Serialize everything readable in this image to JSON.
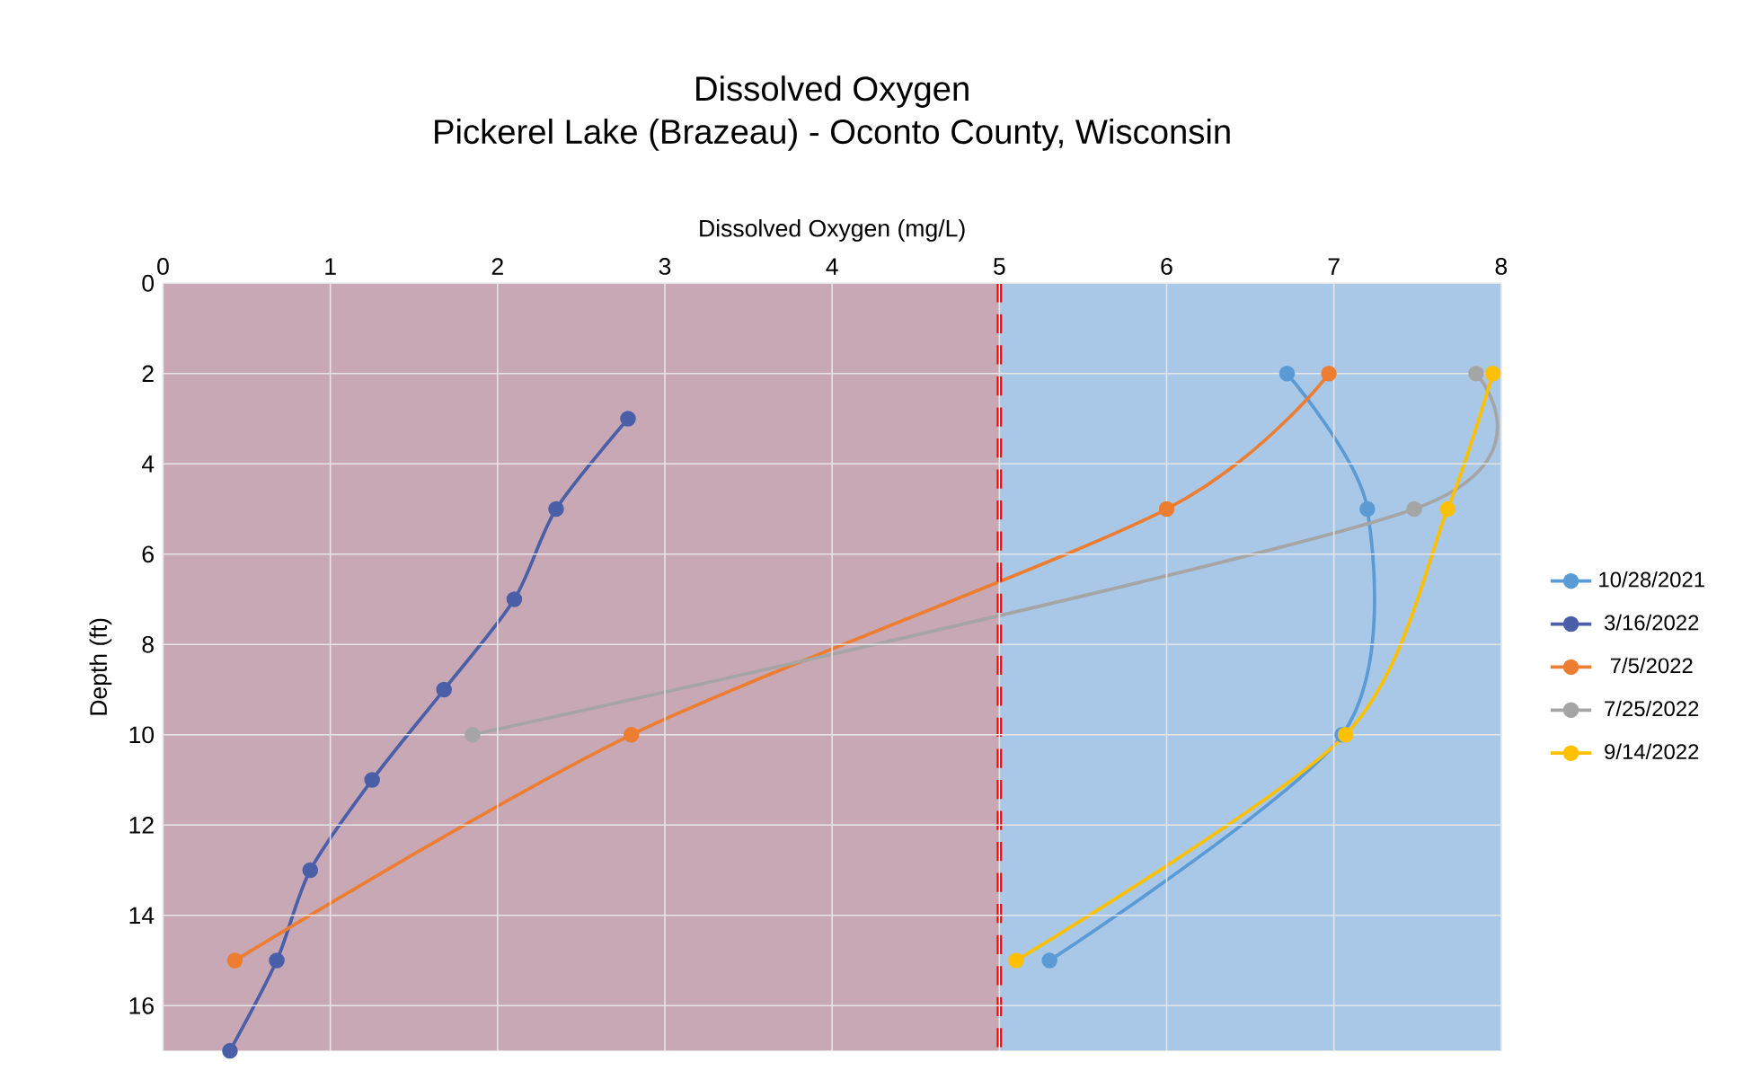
{
  "chart_data": {
    "type": "line",
    "title": "Dissolved Oxygen",
    "subtitle": "Pickerel Lake (Brazeau) - Oconto County, Wisconsin",
    "xlabel": "Dissolved Oxygen (mg/L)",
    "ylabel": "Depth (ft)",
    "xlim": [
      0,
      8
    ],
    "xticks": [
      0,
      1,
      2,
      3,
      4,
      5,
      6,
      7,
      8
    ],
    "ylim": [
      17,
      0
    ],
    "yticks": [
      0,
      2,
      4,
      6,
      8,
      10,
      12,
      14,
      16
    ],
    "grid": true,
    "legend": "right",
    "marker": "circle",
    "line_style": "solid",
    "series": [
      {
        "name": "10/28/2021",
        "color": "#5b9bd5",
        "x": [
          6.72,
          7.2,
          7.05,
          5.3
        ],
        "values": [
          2,
          5,
          10,
          15
        ]
      },
      {
        "name": "3/16/2022",
        "color": "#4a5fa8",
        "x": [
          2.78,
          2.35,
          2.1,
          1.68,
          1.25,
          0.88,
          0.68,
          0.4
        ],
        "values": [
          3,
          5,
          7,
          9,
          11,
          13,
          15,
          17
        ]
      },
      {
        "name": "7/5/2022",
        "color": "#ed7d31",
        "x": [
          6.97,
          6.0,
          2.8,
          0.43
        ],
        "values": [
          2,
          5,
          10,
          15
        ]
      },
      {
        "name": "7/25/2022",
        "color": "#a5a5a5",
        "x": [
          7.85,
          7.48,
          1.85
        ],
        "values": [
          2,
          5,
          10
        ]
      },
      {
        "name": "9/14/2022",
        "color": "#ffc000",
        "x": [
          7.95,
          7.68,
          7.07,
          5.1
        ],
        "values": [
          2,
          5,
          10,
          15
        ]
      }
    ],
    "ref_lines": [
      {
        "axis": "x",
        "value": 5,
        "color": "#ff0000",
        "line_style": "dashed"
      }
    ],
    "bands": [
      {
        "axis": "x",
        "from": 0,
        "to": 5,
        "color": "#c8a8b4"
      },
      {
        "axis": "x",
        "from": 5,
        "to": 8,
        "color": "#a9c8e8"
      }
    ]
  }
}
